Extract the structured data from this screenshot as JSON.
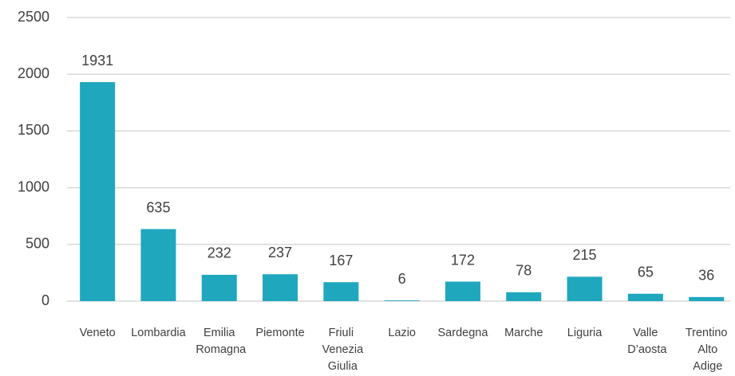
{
  "chart_data": {
    "type": "bar",
    "categories": [
      "Veneto",
      "Lombardia",
      "Emilia Romagna",
      "Piemonte",
      "Friuli Venezia Giulia",
      "Lazio",
      "Sardegna",
      "Marche",
      "Liguria",
      "Valle D’aosta",
      "Trentino Alto Adige"
    ],
    "values": [
      1931,
      635,
      232,
      237,
      167,
      6,
      172,
      78,
      215,
      65,
      36
    ],
    "color": "#1fa7be",
    "ylim": [
      0,
      2500
    ],
    "yticks": [
      0,
      500,
      1000,
      1500,
      2000,
      2500
    ],
    "grid": true
  }
}
